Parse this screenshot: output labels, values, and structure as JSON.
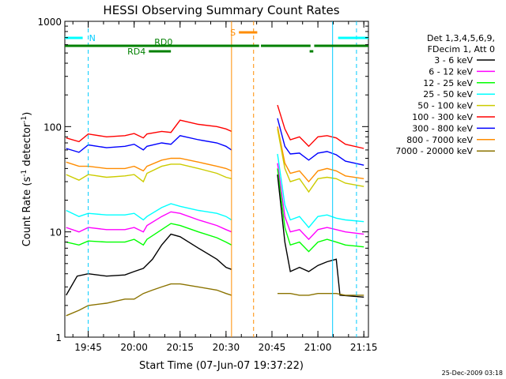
{
  "chart_data": {
    "type": "line",
    "title": "HESSI Observing Summary Count Rates",
    "xlabel": "Start Time (07-Jun-07 19:37:22)",
    "ylabel": "Count Rate (s⁻¹ detector⁻¹)",
    "ylabel_main": "Count Rate (s",
    "ylabel_sup1": "-1",
    "ylabel_mid": " detector",
    "ylabel_sup2": "-1",
    "ylabel_end": ")",
    "yscale": "log",
    "ylim": [
      1,
      1000
    ],
    "xlim": [
      19.6228,
      21.275
    ],
    "x_ticks": [
      {
        "label": "19:45",
        "value": 19.75
      },
      {
        "label": "20:00",
        "value": 20.0
      },
      {
        "label": "20:15",
        "value": 20.25
      },
      {
        "label": "20:30",
        "value": 20.5
      },
      {
        "label": "20:45",
        "value": 20.75
      },
      {
        "label": "21:00",
        "value": 21.0
      },
      {
        "label": "21:15",
        "value": 21.25
      }
    ],
    "y_ticks": [
      {
        "label": "1",
        "value": 1
      },
      {
        "label": "10",
        "value": 10
      },
      {
        "label": "100",
        "value": 100
      },
      {
        "label": "1000",
        "value": 1000
      }
    ],
    "legend": {
      "placement": "right",
      "header": [
        "Det 1,3,4,5,6,9,",
        "FDecim 1, Att 0"
      ],
      "entries": [
        {
          "label": "3 - 6 keV",
          "color": "#000000"
        },
        {
          "label": "6 - 12 keV",
          "color": "#ff00ff"
        },
        {
          "label": "12 - 25 keV",
          "color": "#00ff00"
        },
        {
          "label": "25 - 50 keV",
          "color": "#00ffff"
        },
        {
          "label": "50 - 100 keV",
          "color": "#cccc00"
        },
        {
          "label": "100 - 300 keV",
          "color": "#ff0000"
        },
        {
          "label": "300 - 800 keV",
          "color": "#0000ff"
        },
        {
          "label": "800 - 7000 keV",
          "color": "#ff8c00"
        },
        {
          "label": "7000 - 20000 keV",
          "color": "#8b7300"
        }
      ]
    },
    "segments": [
      [
        19.6228,
        20.53
      ],
      [
        20.78,
        21.275
      ]
    ],
    "series": [
      {
        "color": "#ff0000",
        "values": [
          [
            19.63,
            78
          ],
          [
            19.7,
            72
          ],
          [
            19.75,
            85
          ],
          [
            19.85,
            80
          ],
          [
            19.95,
            82
          ],
          [
            20.0,
            86
          ],
          [
            20.05,
            78
          ],
          [
            20.07,
            85
          ],
          [
            20.15,
            90
          ],
          [
            20.2,
            88
          ],
          [
            20.25,
            115
          ],
          [
            20.35,
            105
          ],
          [
            20.45,
            100
          ],
          [
            20.5,
            95
          ],
          [
            20.53,
            90
          ],
          [
            20.78,
            160
          ],
          [
            20.82,
            95
          ],
          [
            20.85,
            75
          ],
          [
            20.9,
            80
          ],
          [
            20.95,
            65
          ],
          [
            21.0,
            80
          ],
          [
            21.05,
            82
          ],
          [
            21.1,
            78
          ],
          [
            21.15,
            68
          ],
          [
            21.25,
            62
          ]
        ]
      },
      {
        "color": "#0000ff",
        "values": [
          [
            19.63,
            62
          ],
          [
            19.7,
            57
          ],
          [
            19.75,
            67
          ],
          [
            19.85,
            63
          ],
          [
            19.95,
            65
          ],
          [
            20.0,
            68
          ],
          [
            20.05,
            60
          ],
          [
            20.07,
            65
          ],
          [
            20.15,
            70
          ],
          [
            20.2,
            68
          ],
          [
            20.25,
            82
          ],
          [
            20.35,
            75
          ],
          [
            20.45,
            70
          ],
          [
            20.5,
            65
          ],
          [
            20.53,
            60
          ],
          [
            20.78,
            120
          ],
          [
            20.82,
            65
          ],
          [
            20.85,
            55
          ],
          [
            20.9,
            56
          ],
          [
            20.95,
            48
          ],
          [
            21.0,
            56
          ],
          [
            21.05,
            58
          ],
          [
            21.1,
            54
          ],
          [
            21.15,
            47
          ],
          [
            21.25,
            43
          ]
        ]
      },
      {
        "color": "#ff8c00",
        "values": [
          [
            19.63,
            46
          ],
          [
            19.7,
            42
          ],
          [
            19.75,
            42
          ],
          [
            19.85,
            40
          ],
          [
            19.95,
            40
          ],
          [
            20.0,
            42
          ],
          [
            20.05,
            38
          ],
          [
            20.07,
            42
          ],
          [
            20.15,
            48
          ],
          [
            20.2,
            50
          ],
          [
            20.25,
            50
          ],
          [
            20.35,
            46
          ],
          [
            20.45,
            42
          ],
          [
            20.5,
            40
          ],
          [
            20.53,
            38
          ],
          [
            20.78,
            100
          ],
          [
            20.82,
            45
          ],
          [
            20.85,
            36
          ],
          [
            20.9,
            38
          ],
          [
            20.95,
            30
          ],
          [
            21.0,
            38
          ],
          [
            21.05,
            40
          ],
          [
            21.1,
            38
          ],
          [
            21.15,
            34
          ],
          [
            21.25,
            32
          ]
        ]
      },
      {
        "color": "#cccc00",
        "values": [
          [
            19.63,
            35
          ],
          [
            19.7,
            31
          ],
          [
            19.75,
            35
          ],
          [
            19.85,
            33
          ],
          [
            19.95,
            34
          ],
          [
            20.0,
            35
          ],
          [
            20.05,
            30
          ],
          [
            20.07,
            36
          ],
          [
            20.15,
            42
          ],
          [
            20.2,
            44
          ],
          [
            20.25,
            44
          ],
          [
            20.35,
            40
          ],
          [
            20.45,
            36
          ],
          [
            20.5,
            33
          ],
          [
            20.53,
            32
          ],
          [
            20.78,
            95
          ],
          [
            20.82,
            40
          ],
          [
            20.85,
            30
          ],
          [
            20.9,
            32
          ],
          [
            20.95,
            24
          ],
          [
            21.0,
            32
          ],
          [
            21.05,
            33
          ],
          [
            21.1,
            32
          ],
          [
            21.15,
            29
          ],
          [
            21.25,
            27
          ]
        ]
      },
      {
        "color": "#00ffff",
        "values": [
          [
            19.63,
            16
          ],
          [
            19.7,
            14
          ],
          [
            19.75,
            15
          ],
          [
            19.85,
            14.5
          ],
          [
            19.95,
            14.5
          ],
          [
            20.0,
            15
          ],
          [
            20.05,
            13
          ],
          [
            20.07,
            14
          ],
          [
            20.15,
            17
          ],
          [
            20.2,
            18.5
          ],
          [
            20.25,
            17.5
          ],
          [
            20.35,
            16
          ],
          [
            20.45,
            15
          ],
          [
            20.5,
            14
          ],
          [
            20.53,
            13
          ],
          [
            20.78,
            55
          ],
          [
            20.82,
            18
          ],
          [
            20.85,
            13
          ],
          [
            20.9,
            14
          ],
          [
            20.95,
            11
          ],
          [
            21.0,
            14
          ],
          [
            21.05,
            14.5
          ],
          [
            21.1,
            13.5
          ],
          [
            21.15,
            13
          ],
          [
            21.25,
            12.5
          ]
        ]
      },
      {
        "color": "#ff00ff",
        "values": [
          [
            19.63,
            11
          ],
          [
            19.7,
            10
          ],
          [
            19.75,
            11
          ],
          [
            19.85,
            10.5
          ],
          [
            19.95,
            10.5
          ],
          [
            20.0,
            11
          ],
          [
            20.05,
            10
          ],
          [
            20.07,
            11.5
          ],
          [
            20.15,
            14
          ],
          [
            20.2,
            15.5
          ],
          [
            20.25,
            15
          ],
          [
            20.35,
            13
          ],
          [
            20.45,
            11.5
          ],
          [
            20.5,
            10.5
          ],
          [
            20.53,
            10
          ],
          [
            20.78,
            45
          ],
          [
            20.82,
            14
          ],
          [
            20.85,
            10
          ],
          [
            20.9,
            10.5
          ],
          [
            20.95,
            8.5
          ],
          [
            21.0,
            10.5
          ],
          [
            21.05,
            11
          ],
          [
            21.1,
            10.5
          ],
          [
            21.15,
            10
          ],
          [
            21.25,
            9.5
          ]
        ]
      },
      {
        "color": "#00ff00",
        "values": [
          [
            19.63,
            8
          ],
          [
            19.7,
            7.5
          ],
          [
            19.75,
            8.2
          ],
          [
            19.85,
            8
          ],
          [
            19.95,
            8
          ],
          [
            20.0,
            8.5
          ],
          [
            20.05,
            7.5
          ],
          [
            20.07,
            8.5
          ],
          [
            20.15,
            10.5
          ],
          [
            20.2,
            12
          ],
          [
            20.25,
            11.5
          ],
          [
            20.35,
            10
          ],
          [
            20.45,
            8.8
          ],
          [
            20.5,
            8
          ],
          [
            20.53,
            7.5
          ],
          [
            20.78,
            40
          ],
          [
            20.82,
            11
          ],
          [
            20.85,
            7.5
          ],
          [
            20.9,
            8
          ],
          [
            20.95,
            6.5
          ],
          [
            21.0,
            8
          ],
          [
            21.05,
            8.5
          ],
          [
            21.1,
            8
          ],
          [
            21.15,
            7.5
          ],
          [
            21.25,
            7.2
          ]
        ]
      },
      {
        "color": "#000000",
        "values": [
          [
            19.63,
            2.5
          ],
          [
            19.69,
            3.8
          ],
          [
            19.75,
            4
          ],
          [
            19.85,
            3.8
          ],
          [
            19.95,
            3.9
          ],
          [
            20.0,
            4.2
          ],
          [
            20.05,
            4.5
          ],
          [
            20.1,
            5.5
          ],
          [
            20.15,
            7.5
          ],
          [
            20.2,
            9.5
          ],
          [
            20.25,
            9
          ],
          [
            20.35,
            7
          ],
          [
            20.45,
            5.5
          ],
          [
            20.5,
            4.6
          ],
          [
            20.53,
            4.4
          ],
          [
            20.78,
            35
          ],
          [
            20.82,
            8
          ],
          [
            20.85,
            4.2
          ],
          [
            20.9,
            4.6
          ],
          [
            20.95,
            4.2
          ],
          [
            21.0,
            4.8
          ],
          [
            21.05,
            5.2
          ],
          [
            21.1,
            5.5
          ],
          [
            21.12,
            2.5
          ],
          [
            21.25,
            2.4
          ]
        ]
      },
      {
        "color": "#8b7300",
        "values": [
          [
            19.63,
            1.6
          ],
          [
            19.7,
            1.8
          ],
          [
            19.75,
            2.0
          ],
          [
            19.85,
            2.1
          ],
          [
            19.95,
            2.3
          ],
          [
            20.0,
            2.3
          ],
          [
            20.05,
            2.6
          ],
          [
            20.1,
            2.8
          ],
          [
            20.15,
            3.0
          ],
          [
            20.2,
            3.2
          ],
          [
            20.25,
            3.2
          ],
          [
            20.35,
            3.0
          ],
          [
            20.45,
            2.8
          ],
          [
            20.5,
            2.6
          ],
          [
            20.53,
            2.5
          ],
          [
            20.78,
            2.6
          ],
          [
            20.85,
            2.6
          ],
          [
            20.9,
            2.5
          ],
          [
            20.95,
            2.5
          ],
          [
            21.0,
            2.6
          ],
          [
            21.05,
            2.6
          ],
          [
            21.1,
            2.6
          ],
          [
            21.15,
            2.5
          ],
          [
            21.25,
            2.5
          ]
        ]
      }
    ],
    "annotations": {
      "night_bars": [
        {
          "label": "N",
          "start": 19.6228,
          "end": 19.72
        },
        {
          "label": "",
          "start": 21.11,
          "end": 21.275
        }
      ],
      "saa_bar": {
        "label": "S",
        "start": 20.57,
        "end": 20.67
      },
      "decimation_main": {
        "label": "RD0",
        "start": 19.6228,
        "end": 21.275
      },
      "decimation_state": {
        "label": "RD4",
        "start": 20.08,
        "end": 20.2
      },
      "night_lines": [
        19.75,
        21.21
      ],
      "saa_line": 20.65,
      "pointing_lines": [
        20.53,
        21.08
      ]
    },
    "footer_date": "25-Dec-2009 03:18"
  }
}
